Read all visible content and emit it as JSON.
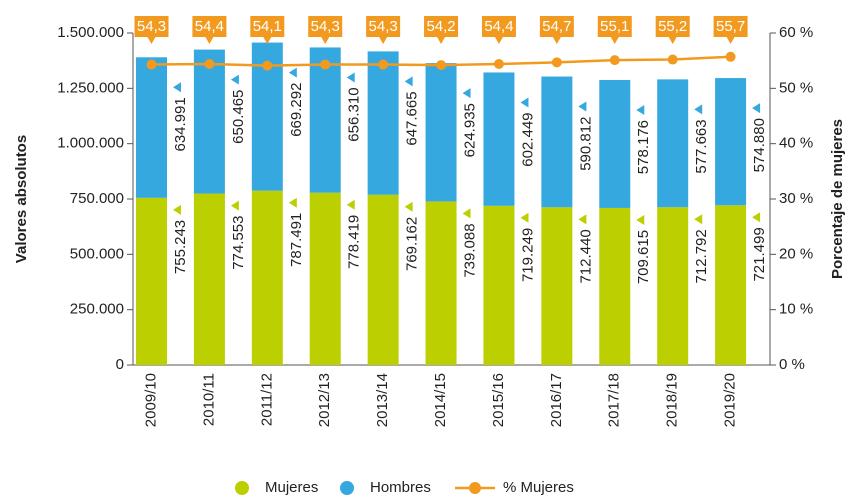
{
  "chart_data": {
    "type": "stacked_bar_line",
    "categories": [
      "2009/10",
      "2010/11",
      "2011/12",
      "2012/13",
      "2013/14",
      "2014/15",
      "2015/16",
      "2016/17",
      "2017/18",
      "2018/19",
      "2019/20"
    ],
    "series": [
      {
        "name": "Mujeres",
        "color": "#bccf00",
        "values": [
          755243,
          774553,
          787491,
          778419,
          769162,
          739088,
          719249,
          712440,
          709615,
          712792,
          721499
        ],
        "value_labels": [
          "755.243",
          "774.553",
          "787.491",
          "778.419",
          "769.162",
          "739.088",
          "719.249",
          "712.440",
          "709.615",
          "712.792",
          "721.499"
        ]
      },
      {
        "name": "Hombres",
        "color": "#35a8e0",
        "values": [
          634991,
          650465,
          669292,
          656310,
          647665,
          624935,
          602449,
          590812,
          578176,
          577663,
          574880
        ],
        "value_labels": [
          "634.991",
          "650.465",
          "669.292",
          "656.310",
          "647.665",
          "624.935",
          "602.449",
          "590.812",
          "578.176",
          "577.663",
          "574.880"
        ]
      },
      {
        "name": "% Mujeres",
        "color": "#f29a1f",
        "axis": "y2",
        "values": [
          54.3,
          54.4,
          54.1,
          54.3,
          54.3,
          54.2,
          54.4,
          54.7,
          55.1,
          55.2,
          55.7
        ],
        "value_labels": [
          "54,3",
          "54,4",
          "54,1",
          "54,3",
          "54,3",
          "54,2",
          "54,4",
          "54,7",
          "55,1",
          "55,2",
          "55,7"
        ]
      }
    ],
    "ylabel": "Valores absolutos",
    "y2label": "Porcentaje de mujeres",
    "ylim": [
      0,
      1500000
    ],
    "yticks": [
      0,
      {
        "value": 250000,
        "label": "250.000"
      },
      {
        "value": 500000,
        "label": "500.000"
      },
      {
        "value": 750000,
        "label": "750.000"
      },
      {
        "value": 1000000,
        "label": "1.000.000"
      },
      {
        "value": 1250000,
        "label": "1.250.000"
      },
      {
        "value": 1500000,
        "label": "1.500.000"
      }
    ],
    "y2lim": [
      0,
      60
    ],
    "y2ticks": [
      {
        "value": 0,
        "label": "0 %"
      },
      {
        "value": 10,
        "label": "10 %"
      },
      {
        "value": 20,
        "label": "20 %"
      },
      {
        "value": 30,
        "label": "30 %"
      },
      {
        "value": 40,
        "label": "40 %"
      },
      {
        "value": 50,
        "label": "50 %"
      },
      {
        "value": 60,
        "label": "60 %"
      }
    ],
    "legend": "bottom"
  }
}
